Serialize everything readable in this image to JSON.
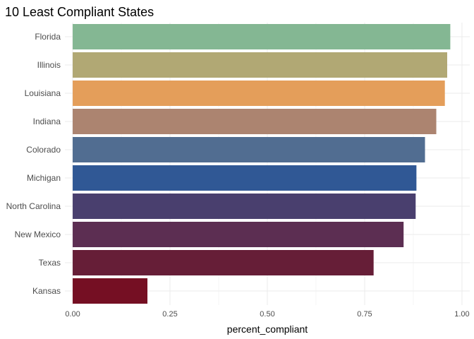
{
  "chart_data": {
    "type": "bar",
    "orientation": "horizontal",
    "title": "10 Least Compliant States",
    "xlabel": "percent_compliant",
    "ylabel": "",
    "categories": [
      "Florida",
      "Illinois",
      "Louisiana",
      "Indiana",
      "Colorado",
      "Michigan",
      "North Carolina",
      "New Mexico",
      "Texas",
      "Kansas"
    ],
    "values": [
      0.97,
      0.962,
      0.956,
      0.934,
      0.905,
      0.883,
      0.881,
      0.85,
      0.773,
      0.192
    ],
    "colors": [
      "#84b793",
      "#b1a874",
      "#e49e5a",
      "#ac8470",
      "#516d91",
      "#305895",
      "#493f6e",
      "#5c2e52",
      "#661e37",
      "#750f23"
    ],
    "xlim": [
      -0.02,
      1.02
    ],
    "xticks": [
      0,
      0.25,
      0.5,
      0.75,
      1.0
    ],
    "xtick_labels": [
      "0.00",
      "0.25",
      "0.50",
      "0.75",
      "1.00"
    ],
    "grid": true,
    "legend": "none"
  }
}
